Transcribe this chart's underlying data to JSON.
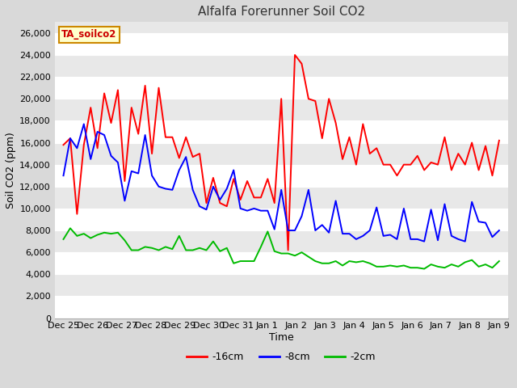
{
  "title": "Alfalfa Forerunner Soil CO2",
  "xlabel": "Time",
  "ylabel": "Soil CO2 (ppm)",
  "legend_label": "TA_soilco2",
  "series_labels": [
    "-16cm",
    "-8cm",
    "-2cm"
  ],
  "series_colors": [
    "#ff0000",
    "#0000ff",
    "#00bb00"
  ],
  "ylim": [
    0,
    27000
  ],
  "yticks": [
    0,
    2000,
    4000,
    6000,
    8000,
    10000,
    12000,
    14000,
    16000,
    18000,
    20000,
    22000,
    24000,
    26000
  ],
  "xtick_labels": [
    "Dec 25",
    "Dec 26",
    "Dec 27",
    "Dec 28",
    "Dec 29",
    "Dec 30",
    "Dec 31",
    "Jan 1",
    "Jan 2",
    "Jan 3",
    "Jan 4",
    "Jan 5",
    "Jan 6",
    "Jan 7",
    "Jan 8",
    "Jan 9"
  ],
  "background_color": "#d9d9d9",
  "plot_bg_color": "#e8e8e8",
  "grid_color": "#ffffff",
  "title_color": "#333333",
  "title_fontsize": 11,
  "axis_label_fontsize": 9,
  "tick_fontsize": 8,
  "line_width": 1.4,
  "red_data": [
    15800,
    16400,
    9500,
    15800,
    19200,
    15500,
    20500,
    17800,
    20800,
    12500,
    19200,
    16800,
    21200,
    15000,
    21000,
    16500,
    16500,
    14600,
    16500,
    14700,
    15000,
    10500,
    12800,
    10500,
    10200,
    12700,
    10800,
    12500,
    11000,
    11000,
    12700,
    10500,
    20000,
    6200,
    24000,
    23200,
    20000,
    19800,
    16400,
    20000,
    17800,
    14500,
    16500,
    14000,
    17700,
    15000,
    15500,
    14000,
    14000,
    13000,
    14000,
    14000,
    14800,
    13500,
    14200,
    14000,
    16500,
    13500,
    15000,
    14000,
    16000,
    13500,
    15700,
    13000,
    16200
  ],
  "blue_data": [
    13000,
    16400,
    15500,
    17700,
    14500,
    17000,
    16700,
    14800,
    14200,
    10700,
    13400,
    13200,
    16700,
    13000,
    12000,
    11800,
    11700,
    13500,
    14700,
    11700,
    10200,
    9900,
    12000,
    10800,
    11800,
    13500,
    10000,
    9800,
    10000,
    9800,
    9800,
    8100,
    11700,
    8000,
    8000,
    9300,
    11700,
    8000,
    8500,
    7800,
    10700,
    7700,
    7700,
    7200,
    7500,
    8000,
    10100,
    7500,
    7600,
    7200,
    10000,
    7200,
    7200,
    7000,
    9900,
    7100,
    10400,
    7500,
    7200,
    7000,
    10600,
    8800,
    8700,
    7400,
    8000
  ],
  "green_data": [
    7200,
    8200,
    7500,
    7700,
    7300,
    7600,
    7800,
    7700,
    7800,
    7100,
    6200,
    6200,
    6500,
    6400,
    6200,
    6500,
    6300,
    7500,
    6200,
    6200,
    6400,
    6200,
    7000,
    6100,
    6400,
    5000,
    5200,
    5200,
    5200,
    6500,
    7900,
    6100,
    5900,
    5900,
    5700,
    6000,
    5600,
    5200,
    5000,
    5000,
    5200,
    4800,
    5200,
    5100,
    5200,
    5000,
    4700,
    4700,
    4800,
    4700,
    4800,
    4600,
    4600,
    4500,
    4900,
    4700,
    4600,
    4900,
    4700,
    5100,
    5300,
    4700,
    4900,
    4600,
    5200
  ]
}
